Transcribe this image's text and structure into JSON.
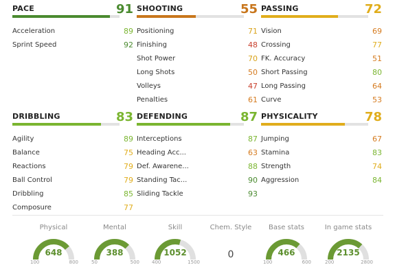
{
  "categories": [
    {
      "title": "PACE",
      "value": 91,
      "color": "#4a8a2f",
      "fill": 91,
      "attrs": [
        {
          "name": "Acceleration",
          "value": 89,
          "color": "#7ab530"
        },
        {
          "name": "Sprint Speed",
          "value": 92,
          "color": "#4a8a2f"
        }
      ]
    },
    {
      "title": "SHOOTING",
      "value": 55,
      "color": "#c8761c",
      "fill": 55,
      "attrs": [
        {
          "name": "Positioning",
          "value": 71,
          "color": "#d9a31a"
        },
        {
          "name": "Finishing",
          "value": 48,
          "color": "#c9402d"
        },
        {
          "name": "Shot Power",
          "value": 70,
          "color": "#d9a31a"
        },
        {
          "name": "Long Shots",
          "value": 50,
          "color": "#d57a1e"
        },
        {
          "name": "Volleys",
          "value": 47,
          "color": "#c9402d"
        },
        {
          "name": "Penalties",
          "value": 61,
          "color": "#d57a1e"
        }
      ]
    },
    {
      "title": "PASSING",
      "value": 72,
      "color": "#e0ad1c",
      "fill": 72,
      "attrs": [
        {
          "name": "Vision",
          "value": 69,
          "color": "#d57a1e"
        },
        {
          "name": "Crossing",
          "value": 77,
          "color": "#e0ad1c"
        },
        {
          "name": "FK. Accuracy",
          "value": 51,
          "color": "#d57a1e"
        },
        {
          "name": "Short Passing",
          "value": 80,
          "color": "#7ab530"
        },
        {
          "name": "Long Passing",
          "value": 64,
          "color": "#d57a1e"
        },
        {
          "name": "Curve",
          "value": 53,
          "color": "#d57a1e"
        }
      ]
    },
    {
      "title": "DRIBBLING",
      "value": 83,
      "color": "#7ab530",
      "fill": 83,
      "attrs": [
        {
          "name": "Agility",
          "value": 89,
          "color": "#7ab530"
        },
        {
          "name": "Balance",
          "value": 75,
          "color": "#e0ad1c"
        },
        {
          "name": "Reactions",
          "value": 79,
          "color": "#e0ad1c"
        },
        {
          "name": "Ball Control",
          "value": 79,
          "color": "#e0ad1c"
        },
        {
          "name": "Dribbling",
          "value": 85,
          "color": "#7ab530"
        },
        {
          "name": "Composure",
          "value": 77,
          "color": "#e0ad1c"
        }
      ]
    },
    {
      "title": "DEFENDING",
      "value": 87,
      "color": "#7ab530",
      "fill": 87,
      "attrs": [
        {
          "name": "Interceptions",
          "value": 87,
          "color": "#7ab530"
        },
        {
          "name": "Heading Acc...",
          "value": 63,
          "color": "#d57a1e"
        },
        {
          "name": "Def. Awarene...",
          "value": 88,
          "color": "#7ab530"
        },
        {
          "name": "Standing Tac...",
          "value": 90,
          "color": "#4a8a2f"
        },
        {
          "name": "Sliding Tackle",
          "value": 93,
          "color": "#4a8a2f"
        }
      ]
    },
    {
      "title": "PHYSICALITY",
      "value": 78,
      "color": "#e0ad1c",
      "fill": 78,
      "attrs": [
        {
          "name": "Jumping",
          "value": 67,
          "color": "#d57a1e"
        },
        {
          "name": "Stamina",
          "value": 83,
          "color": "#7ab530"
        },
        {
          "name": "Strength",
          "value": 74,
          "color": "#e0ad1c"
        },
        {
          "name": "Aggression",
          "value": 84,
          "color": "#7ab530"
        }
      ]
    }
  ],
  "gauges": [
    {
      "title": "Physical",
      "value": "648",
      "min": "100",
      "max": "800",
      "fraction": 0.78
    },
    {
      "title": "Mental",
      "value": "388",
      "min": "50",
      "max": "500",
      "fraction": 0.75
    },
    {
      "title": "Skill",
      "value": "1052",
      "min": "400",
      "max": "1500",
      "fraction": 0.59
    },
    {
      "title": "Chem. Style",
      "value": "0"
    },
    {
      "title": "Base stats",
      "value": "466",
      "min": "100",
      "max": "600",
      "fraction": 0.73
    },
    {
      "title": "In game stats",
      "value": "2135",
      "min": "200",
      "max": "2800",
      "fraction": 0.74
    }
  ],
  "gauge_color": "#6b9a34",
  "gauge_track": "#e0e0e0"
}
